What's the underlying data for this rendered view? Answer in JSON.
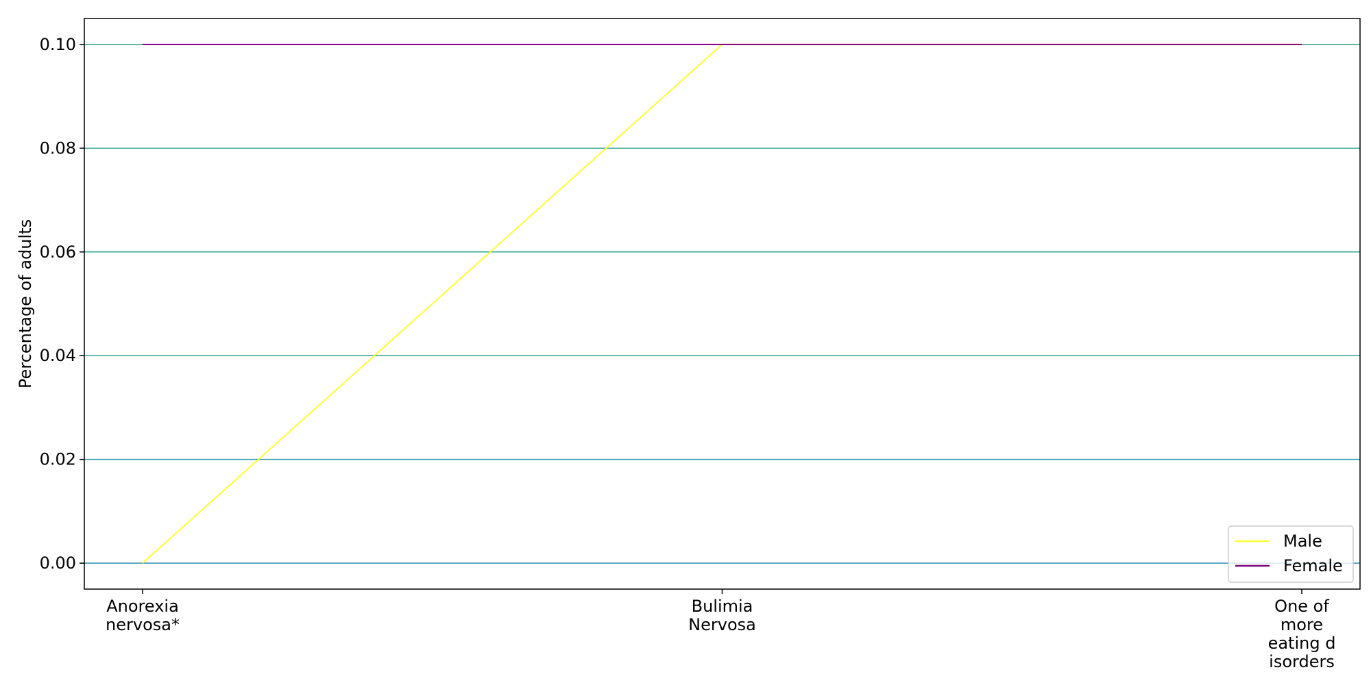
{
  "chart_data": {
    "type": "line",
    "title": "",
    "xlabel": "",
    "ylabel": "Percentage of adults",
    "categories": [
      [
        "Anorexia",
        "nervosa*"
      ],
      [
        "Bulimia",
        "Nervosa"
      ],
      [
        "One of",
        "more",
        "eating d",
        "isorders"
      ]
    ],
    "series": [
      {
        "name": "Male",
        "color": "#ffff33",
        "values": [
          0.0,
          0.1,
          0.1
        ]
      },
      {
        "name": "Female",
        "color": "#800080",
        "values": [
          0.1,
          0.1,
          0.1
        ]
      }
    ],
    "ylim": [
      -0.005,
      0.105
    ],
    "yticks": [
      "0.00",
      "0.02",
      "0.04",
      "0.06",
      "0.08",
      "0.10"
    ],
    "grid": true,
    "grid_colors": [
      "#2a8fb8",
      "#2a98a8",
      "#2aa09e",
      "#2aa394",
      "#2aa38a",
      "#2aa080"
    ],
    "legend_position": "lower-right"
  }
}
